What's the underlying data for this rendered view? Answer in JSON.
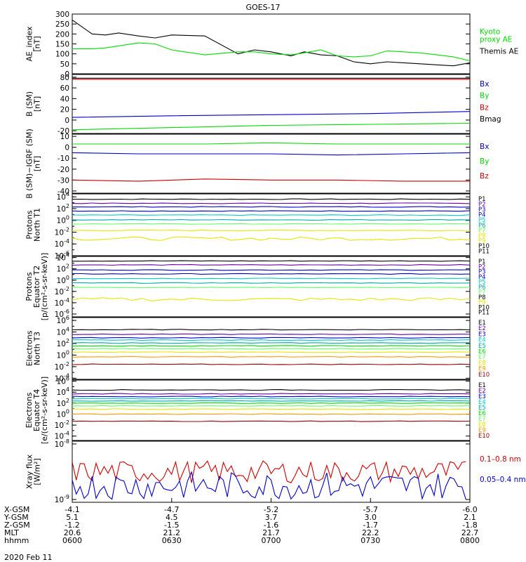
{
  "title": "GOES-17",
  "date_label": "2020 Feb 11",
  "colors": {
    "black": "#000000",
    "red": "#cc0000",
    "green": "#00dd00",
    "blue": "#0000cc",
    "yellow": "#e6e600",
    "orange": "#ff9900",
    "cyan": "#00cccc",
    "ltgreen": "#66ff66",
    "teal": "#00aaaa",
    "purple": "#6600aa",
    "darkred": "#990000"
  },
  "orbit_table": {
    "row_labels": [
      "X-GSM",
      "Y-GSM",
      "Z-GSM",
      "MLT",
      "hhmm"
    ],
    "columns": [
      [
        "-4.1",
        "5.1",
        "-1.2",
        "20.6",
        "0600"
      ],
      [
        "-4.7",
        "4.5",
        "-1.5",
        "21.2",
        "0630"
      ],
      [
        "-5.2",
        "3.7",
        "-1.6",
        "21.7",
        "0700"
      ],
      [
        "-5.7",
        "3.0",
        "-1.7",
        "22.2",
        "0730"
      ],
      [
        "-6.0",
        "2.1",
        "-1.8",
        "22.7",
        "0800"
      ]
    ]
  },
  "chart_data": [
    {
      "type": "line",
      "ylabel": "AE_index\n[nT]",
      "yticks": [
        "300",
        "250",
        "200",
        "150",
        "100",
        "50",
        "0"
      ],
      "ylim": [
        0,
        300
      ],
      "scale": "linear",
      "x": [
        0,
        6,
        10,
        14,
        20,
        25,
        30,
        40,
        50,
        55,
        60,
        66,
        70,
        75,
        80,
        85,
        90,
        95,
        100,
        105,
        110,
        115,
        120
      ],
      "series": [
        {
          "name": "Themis AE",
          "color": "black",
          "values": [
            270,
            200,
            195,
            205,
            190,
            180,
            195,
            190,
            100,
            120,
            110,
            90,
            110,
            95,
            90,
            60,
            50,
            60,
            55,
            50,
            45,
            40,
            55
          ]
        },
        {
          "name": "Kyoto proxy AE",
          "color": "green",
          "values": [
            125,
            125,
            130,
            140,
            155,
            150,
            120,
            95,
            110,
            110,
            100,
            95,
            105,
            120,
            90,
            85,
            90,
            115,
            110,
            105,
            95,
            85,
            65
          ]
        }
      ],
      "legend": [
        "Kyoto\nproxy AE",
        "Themis AE"
      ]
    },
    {
      "type": "line",
      "ylabel": "B (SM)\n[nT]",
      "yticks": [
        "80",
        "60",
        "40",
        "20",
        "0",
        "-20"
      ],
      "ylim": [
        -25,
        85
      ],
      "scale": "linear",
      "x": [
        0,
        30,
        60,
        90,
        120
      ],
      "series": [
        {
          "name": "Bx",
          "color": "blue",
          "values": [
            5,
            8,
            10,
            12,
            16
          ]
        },
        {
          "name": "By",
          "color": "green",
          "values": [
            -18,
            -14,
            -10,
            -8,
            -6
          ]
        },
        {
          "name": "Bz",
          "color": "red",
          "values": [
            76,
            76,
            76,
            76,
            76
          ]
        },
        {
          "name": "Bmag",
          "color": "black",
          "values": [
            78,
            78,
            78,
            78,
            78
          ]
        }
      ],
      "legend": [
        "Bx",
        "By",
        "Bz",
        "Bmag"
      ]
    },
    {
      "type": "line",
      "ylabel": "B (SM)−IGRF (SM)\n[nT]",
      "yticks": [
        "10",
        "0",
        "-10",
        "-20",
        "-30",
        "-40"
      ],
      "ylim": [
        -42,
        12
      ],
      "scale": "linear",
      "x": [
        0,
        20,
        40,
        60,
        80,
        100,
        120
      ],
      "series": [
        {
          "name": "Bx",
          "color": "blue",
          "values": [
            -5,
            -6,
            -6,
            -6,
            -7,
            -6,
            -5
          ]
        },
        {
          "name": "By",
          "color": "green",
          "values": [
            3,
            3,
            3,
            4,
            3,
            3,
            3
          ]
        },
        {
          "name": "Bz",
          "color": "red",
          "values": [
            -30,
            -31,
            -29,
            -30,
            -30,
            -31,
            -31
          ]
        }
      ],
      "legend": [
        "Bx",
        "By",
        "Bz"
      ]
    },
    {
      "type": "line",
      "ylabel": "Protons\nNorth T1",
      "scale": "log",
      "yticks": [
        "10^4",
        "10^2",
        "10^0",
        "10^-2",
        "10^-4",
        "10^-6"
      ],
      "ylim": [
        -6,
        4.5
      ],
      "legend": [
        "P1",
        "P2",
        "P3",
        "P4",
        "P5",
        "P6",
        "P7",
        "P8",
        "P9",
        "P10",
        "P11"
      ],
      "series": [
        {
          "name": "P1",
          "color": "black",
          "log_values": [
            3.6
          ]
        },
        {
          "name": "P2",
          "color": "purple",
          "log_values": [
            2.9
          ]
        },
        {
          "name": "P3",
          "color": "blue",
          "log_values": [
            2.3
          ]
        },
        {
          "name": "P4",
          "color": "blue",
          "log_values": [
            1.6
          ]
        },
        {
          "name": "P5",
          "color": "cyan",
          "log_values": [
            0.9
          ]
        },
        {
          "name": "P6",
          "color": "teal",
          "log_values": [
            0.1
          ]
        },
        {
          "name": "P7",
          "color": "ltgreen",
          "log_values": [
            -0.6
          ]
        },
        {
          "name": "P8",
          "color": "yellow",
          "log_values": [
            -1.7
          ]
        },
        {
          "name": "P9",
          "color": "yellow",
          "log_values": [
            -3.1
          ]
        }
      ]
    },
    {
      "type": "line",
      "ylabel": "Protons\nEquator T2\n[p/(cm²-s-sr-keV)]",
      "scale": "log",
      "yticks": [
        "10^4",
        "10^2",
        "10^0",
        "10^-2",
        "10^-4",
        "10^-6"
      ],
      "ylim": [
        -6.5,
        4.2
      ],
      "legend": [
        "P1",
        "P2",
        "P3",
        "P4",
        "P5",
        "P6",
        "P7",
        "P8",
        "P9",
        "P10",
        "P11"
      ],
      "series": [
        {
          "name": "P1",
          "color": "black",
          "log_values": [
            3.4
          ]
        },
        {
          "name": "P2",
          "color": "purple",
          "log_values": [
            2.7
          ]
        },
        {
          "name": "P3",
          "color": "blue",
          "log_values": [
            1.8
          ]
        },
        {
          "name": "P4",
          "color": "blue",
          "log_values": [
            1.1
          ]
        },
        {
          "name": "P5",
          "color": "cyan",
          "log_values": [
            0.3
          ]
        },
        {
          "name": "P6",
          "color": "teal",
          "log_values": [
            -0.5
          ]
        },
        {
          "name": "P7",
          "color": "ltgreen",
          "log_values": [
            -1.3
          ]
        },
        {
          "name": "P9",
          "color": "yellow",
          "log_values": [
            -3.4
          ]
        }
      ]
    },
    {
      "type": "line",
      "ylabel": "Electrons\nNorth T3",
      "scale": "log",
      "yticks": [
        "10^6",
        "10^4",
        "10^2",
        "10^0",
        "10^-2",
        "10^-4"
      ],
      "ylim": [
        -4.2,
        6.5
      ],
      "legend": [
        "E1",
        "E2",
        "E3",
        "E4",
        "E5",
        "E6",
        "E7",
        "E8",
        "E9",
        "E10"
      ],
      "series": [
        {
          "name": "E1",
          "color": "black",
          "log_values": [
            4.4
          ]
        },
        {
          "name": "E2",
          "color": "purple",
          "log_values": [
            3.6
          ]
        },
        {
          "name": "E3",
          "color": "blue",
          "log_values": [
            3.0
          ]
        },
        {
          "name": "E4",
          "color": "cyan",
          "log_values": [
            2.6
          ]
        },
        {
          "name": "E5",
          "color": "teal",
          "log_values": [
            2.1
          ]
        },
        {
          "name": "E6",
          "color": "green",
          "log_values": [
            1.6
          ]
        },
        {
          "name": "E7",
          "color": "ltgreen",
          "log_values": [
            1.1
          ]
        },
        {
          "name": "E8",
          "color": "yellow",
          "log_values": [
            0.5
          ]
        },
        {
          "name": "E9",
          "color": "orange",
          "log_values": [
            -0.3
          ]
        },
        {
          "name": "E10",
          "color": "darkred",
          "log_values": [
            -1.6
          ]
        }
      ]
    },
    {
      "type": "line",
      "ylabel": "Electrons\nEquator T4\n[e/(cm²-s-sr-keV)]",
      "scale": "log",
      "yticks": [
        "10^6",
        "10^4",
        "10^2",
        "10^0",
        "10^-2",
        "10^-4"
      ],
      "ylim": [
        -4.8,
        6.2
      ],
      "legend": [
        "E1",
        "E2",
        "E3",
        "E4",
        "E5",
        "E6",
        "E7",
        "E8",
        "E9",
        "E10"
      ],
      "series": [
        {
          "name": "E1",
          "color": "black",
          "log_values": [
            4.4
          ]
        },
        {
          "name": "E2",
          "color": "purple",
          "log_values": [
            3.7
          ]
        },
        {
          "name": "E3",
          "color": "blue",
          "log_values": [
            3.2
          ]
        },
        {
          "name": "E4",
          "color": "cyan",
          "log_values": [
            2.8
          ]
        },
        {
          "name": "E5",
          "color": "teal",
          "log_values": [
            2.4
          ]
        },
        {
          "name": "E6",
          "color": "green",
          "log_values": [
            2.0
          ]
        },
        {
          "name": "E7",
          "color": "ltgreen",
          "log_values": [
            1.5
          ]
        },
        {
          "name": "E8",
          "color": "yellow",
          "log_values": [
            0.9
          ]
        },
        {
          "name": "E9",
          "color": "orange",
          "log_values": [
            0.0
          ]
        },
        {
          "name": "E10",
          "color": "darkred",
          "log_values": [
            -1.3
          ]
        }
      ]
    },
    {
      "type": "line",
      "ylabel": "Xray flux\n[W/m²]",
      "scale": "log",
      "yticks": [
        "10^-8",
        "10^-9"
      ],
      "ylim": [
        -9.05,
        -7.95
      ],
      "legend": [
        "0.1–0.8 nm",
        "0.05–0.4 nm"
      ],
      "series": [
        {
          "name": "0.1–0.8 nm",
          "color": "red"
        },
        {
          "name": "0.05–0.4 nm",
          "color": "blue"
        }
      ]
    }
  ]
}
